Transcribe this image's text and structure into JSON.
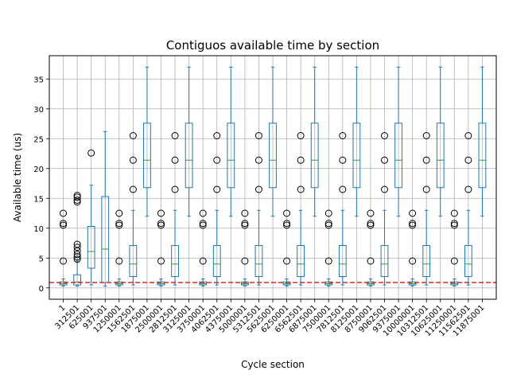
{
  "chart_data": {
    "type": "box",
    "title": "Contiguos available time by section",
    "xlabel": "Cycle section",
    "ylabel": "Available time (us)",
    "ylim": [
      -1.9,
      38.9
    ],
    "yticks": [
      0,
      5,
      10,
      15,
      20,
      25,
      30,
      35
    ],
    "grid": true,
    "categories": [
      "1",
      "312501",
      "625001",
      "937501",
      "1250001",
      "1562501",
      "1875001",
      "2500001",
      "2812501",
      "3125001",
      "3750001",
      "4062501",
      "4375001",
      "5000001",
      "5312501",
      "5625001",
      "6250001",
      "6562501",
      "6875001",
      "7500001",
      "7812501",
      "8125001",
      "8750001",
      "9062501",
      "9375001",
      "10000001",
      "10312501",
      "10625001",
      "11250001",
      "11562501",
      "11875001"
    ],
    "box_types": {
      "A": {
        "whislo": 0.3,
        "q1": 0.5,
        "med": 0.7,
        "q3": 1.0,
        "whishi": 1.5,
        "fliers": [
          4.5,
          10.5,
          10.8,
          12.5
        ]
      },
      "B": {
        "whislo": 0.5,
        "q1": 1.9,
        "med": 4.0,
        "q3": 7.1,
        "whishi": 13.0,
        "fliers": [
          16.5,
          21.4,
          25.5
        ]
      },
      "C": {
        "whislo": 12.0,
        "q1": 16.8,
        "med": 21.4,
        "q3": 27.6,
        "whishi": 37.0,
        "fliers": []
      },
      "D": {
        "whislo": 0.3,
        "q1": 0.5,
        "med": 1.0,
        "q3": 2.2,
        "whishi": 4.5,
        "fliers": [
          4.8,
          5.2,
          5.6,
          6.2,
          6.8,
          7.3,
          14.4,
          14.7,
          15.2,
          15.5
        ]
      },
      "E": {
        "whislo": 0.5,
        "q1": 3.3,
        "med": 6.1,
        "q3": 10.3,
        "whishi": 17.2,
        "fliers": [
          22.6
        ]
      },
      "F": {
        "whislo": 0.3,
        "q1": 0.9,
        "med": 6.5,
        "q3": 15.3,
        "whishi": 26.2,
        "fliers": []
      }
    },
    "box_sequence": [
      "A",
      "D",
      "E",
      "F",
      "A",
      "B",
      "C",
      "A",
      "B",
      "C",
      "A",
      "B",
      "C",
      "A",
      "B",
      "C",
      "A",
      "B",
      "C",
      "A",
      "B",
      "C",
      "A",
      "B",
      "C",
      "A",
      "B",
      "C",
      "A",
      "B",
      "C"
    ],
    "reference_line": {
      "y": 0.9,
      "style": "dashed",
      "color": "#d62728"
    },
    "colors": {
      "box": "#1f77b4",
      "median": "#2ca02c",
      "flier": "#000000",
      "grid": "#b0b0b0"
    }
  }
}
